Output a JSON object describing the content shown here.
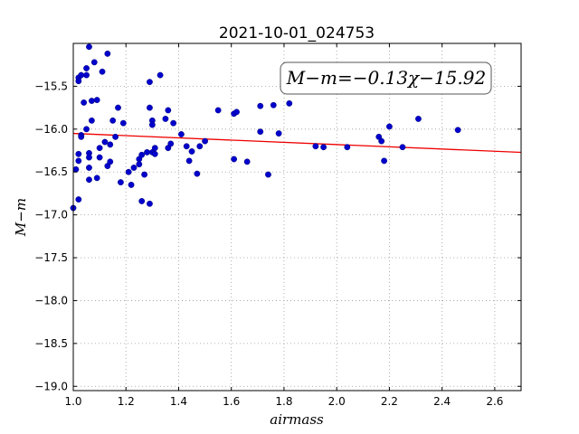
{
  "chart_data": {
    "type": "scatter",
    "title": "2021-10-01_024753",
    "xlabel": "airmass",
    "ylabel": "M−m",
    "xlim": [
      1.0,
      2.7
    ],
    "ylim": [
      -19.05,
      -15.0
    ],
    "x_ticks": [
      1.0,
      1.2,
      1.4,
      1.6,
      1.8,
      2.0,
      2.2,
      2.4,
      2.6
    ],
    "x_tick_labels": [
      "1.0",
      "1.2",
      "1.4",
      "1.6",
      "1.8",
      "2.0",
      "2.2",
      "2.4",
      "2.6"
    ],
    "y_ticks": [
      -15.5,
      -16.0,
      -16.5,
      -17.0,
      -17.5,
      -18.0,
      -18.5,
      -19.0
    ],
    "y_tick_labels": [
      "−15.5",
      "−16.0",
      "−16.5",
      "−17.0",
      "−17.5",
      "−18.0",
      "−18.5",
      "−19.0"
    ],
    "grid": true,
    "annotation": "M−m=−0.13χ−15.92",
    "fit_line": {
      "slope": -0.13,
      "intercept": -15.92
    },
    "colors": {
      "points": "#0000cc",
      "fit": "#ee0000",
      "grid": "#999999"
    },
    "points": [
      [
        1.0,
        -16.92
      ],
      [
        1.01,
        -16.47
      ],
      [
        1.02,
        -15.4
      ],
      [
        1.02,
        -15.44
      ],
      [
        1.02,
        -16.29
      ],
      [
        1.02,
        -16.37
      ],
      [
        1.02,
        -16.82
      ],
      [
        1.03,
        -16.07
      ],
      [
        1.03,
        -16.09
      ],
      [
        1.03,
        -15.37
      ],
      [
        1.04,
        -15.69
      ],
      [
        1.05,
        -15.37
      ],
      [
        1.05,
        -15.29
      ],
      [
        1.05,
        -16.0
      ],
      [
        1.06,
        -16.28
      ],
      [
        1.06,
        -16.33
      ],
      [
        1.06,
        -16.45
      ],
      [
        1.06,
        -16.59
      ],
      [
        1.06,
        -15.04
      ],
      [
        1.07,
        -15.9
      ],
      [
        1.07,
        -15.67
      ],
      [
        1.08,
        -15.22
      ],
      [
        1.09,
        -15.66
      ],
      [
        1.09,
        -16.57
      ],
      [
        1.1,
        -16.22
      ],
      [
        1.1,
        -16.33
      ],
      [
        1.11,
        -15.33
      ],
      [
        1.12,
        -16.15
      ],
      [
        1.13,
        -15.12
      ],
      [
        1.13,
        -16.43
      ],
      [
        1.14,
        -16.18
      ],
      [
        1.14,
        -16.38
      ],
      [
        1.15,
        -15.9
      ],
      [
        1.16,
        -16.09
      ],
      [
        1.17,
        -15.75
      ],
      [
        1.18,
        -16.62
      ],
      [
        1.19,
        -15.93
      ],
      [
        1.21,
        -16.5
      ],
      [
        1.22,
        -16.65
      ],
      [
        1.23,
        -16.45
      ],
      [
        1.25,
        -16.35
      ],
      [
        1.25,
        -16.41
      ],
      [
        1.26,
        -16.3
      ],
      [
        1.26,
        -16.84
      ],
      [
        1.27,
        -16.53
      ],
      [
        1.28,
        -16.27
      ],
      [
        1.29,
        -15.45
      ],
      [
        1.29,
        -15.75
      ],
      [
        1.29,
        -16.87
      ],
      [
        1.3,
        -15.9
      ],
      [
        1.3,
        -15.95
      ],
      [
        1.3,
        -16.27
      ],
      [
        1.31,
        -16.22
      ],
      [
        1.31,
        -16.29
      ],
      [
        1.33,
        -15.37
      ],
      [
        1.35,
        -15.88
      ],
      [
        1.36,
        -15.78
      ],
      [
        1.36,
        -16.22
      ],
      [
        1.37,
        -16.17
      ],
      [
        1.38,
        -15.93
      ],
      [
        1.41,
        -16.06
      ],
      [
        1.43,
        -16.2
      ],
      [
        1.44,
        -16.37
      ],
      [
        1.45,
        -16.26
      ],
      [
        1.47,
        -16.52
      ],
      [
        1.48,
        -16.2
      ],
      [
        1.5,
        -16.14
      ],
      [
        1.55,
        -15.78
      ],
      [
        1.61,
        -16.35
      ],
      [
        1.61,
        -15.82
      ],
      [
        1.62,
        -15.8
      ],
      [
        1.66,
        -16.38
      ],
      [
        1.71,
        -16.03
      ],
      [
        1.71,
        -15.73
      ],
      [
        1.74,
        -16.53
      ],
      [
        1.76,
        -15.72
      ],
      [
        1.78,
        -16.05
      ],
      [
        1.82,
        -15.7
      ],
      [
        1.92,
        -16.2
      ],
      [
        1.95,
        -16.21
      ],
      [
        2.04,
        -16.21
      ],
      [
        2.16,
        -16.09
      ],
      [
        2.17,
        -16.14
      ],
      [
        2.18,
        -16.37
      ],
      [
        2.2,
        -15.97
      ],
      [
        2.25,
        -16.21
      ],
      [
        2.31,
        -15.88
      ],
      [
        2.46,
        -16.01
      ]
    ]
  }
}
